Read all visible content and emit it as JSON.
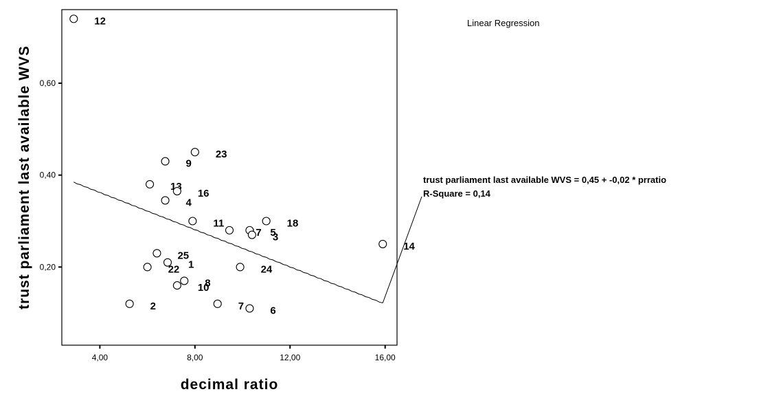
{
  "chart_data": {
    "type": "scatter",
    "title": "",
    "xlabel": "decimal ratio",
    "ylabel": "trust parliament last available WVS",
    "xlim": [
      2.4,
      16.5
    ],
    "ylim": [
      0.03,
      0.76
    ],
    "x_ticks": [
      4,
      8,
      12,
      16
    ],
    "x_tick_labels": [
      "4,00",
      "8,00",
      "12,00",
      "16,00"
    ],
    "y_ticks": [
      0.2,
      0.4,
      0.6
    ],
    "y_tick_labels": [
      "0,20",
      "0,40",
      "0,60"
    ],
    "grid": false,
    "legend": {
      "title": "Linear Regression",
      "placement": "top-right"
    },
    "regression": {
      "intercept": 0.45,
      "slope": -0.02,
      "x_range": [
        2.9,
        15.9
      ],
      "y_range": [
        0.385,
        0.122
      ],
      "equation": "trust parliament last available WVS = 0,45 + -0,02 * prratio",
      "r_square": "R-Square = 0,14"
    },
    "series": [
      {
        "points": [
          {
            "label": "12",
            "x": 2.9,
            "y": 0.74
          },
          {
            "label": "2",
            "x": 5.25,
            "y": 0.12
          },
          {
            "label": "22",
            "x": 6.0,
            "y": 0.2
          },
          {
            "label": "13",
            "x": 6.1,
            "y": 0.38
          },
          {
            "label": "25",
            "x": 6.4,
            "y": 0.23
          },
          {
            "label": "9",
            "x": 6.75,
            "y": 0.43
          },
          {
            "label": "4",
            "x": 6.75,
            "y": 0.345
          },
          {
            "label": "1",
            "x": 6.85,
            "y": 0.21
          },
          {
            "label": "10",
            "x": 7.25,
            "y": 0.16
          },
          {
            "label": "16",
            "x": 7.25,
            "y": 0.365
          },
          {
            "label": "8",
            "x": 7.55,
            "y": 0.17
          },
          {
            "label": "11",
            "x": 7.9,
            "y": 0.3
          },
          {
            "label": "23",
            "x": 8.0,
            "y": 0.45
          },
          {
            "label": "7",
            "x": 8.95,
            "y": 0.12
          },
          {
            "label": "17",
            "x": 9.45,
            "y": 0.28
          },
          {
            "label": "24",
            "x": 9.9,
            "y": 0.2
          },
          {
            "label": "6",
            "x": 10.3,
            "y": 0.11
          },
          {
            "label": "5",
            "x": 10.3,
            "y": 0.28
          },
          {
            "label": "3",
            "x": 10.4,
            "y": 0.27
          },
          {
            "label": "18",
            "x": 11.0,
            "y": 0.3
          },
          {
            "label": "14",
            "x": 15.9,
            "y": 0.25
          }
        ]
      }
    ]
  }
}
